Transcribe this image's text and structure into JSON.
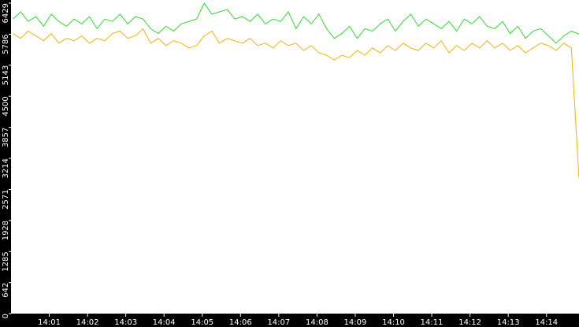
{
  "chart_data": {
    "type": "line",
    "x": [
      0.05,
      0.25,
      0.45,
      0.65,
      0.85,
      1.05,
      1.25,
      1.45,
      1.65,
      1.85,
      2.05,
      2.25,
      2.45,
      2.65,
      2.85,
      3.05,
      3.25,
      3.45,
      3.65,
      3.85,
      4.05,
      4.25,
      4.45,
      4.65,
      4.85,
      5.05,
      5.25,
      5.45,
      5.65,
      5.85,
      6.05,
      6.25,
      6.45,
      6.65,
      6.85,
      7.05,
      7.25,
      7.45,
      7.65,
      7.85,
      8.05,
      8.25,
      8.45,
      8.65,
      8.85,
      9.05,
      9.25,
      9.45,
      9.65,
      9.85,
      10.05,
      10.25,
      10.45,
      10.65,
      10.85,
      11.05,
      11.25,
      11.45,
      11.65,
      11.85,
      12.05,
      12.25,
      12.45,
      12.65,
      12.85,
      13.05,
      13.25,
      13.45,
      13.65,
      13.85,
      14.05,
      14.25,
      14.45,
      14.65,
      14.85
    ],
    "series": [
      {
        "color": "#2fdc2f",
        "values": [
          6100,
          6250,
          6050,
          6150,
          5950,
          6200,
          6050,
          5950,
          6100,
          6000,
          6150,
          5900,
          6100,
          6050,
          6200,
          6000,
          6150,
          6100,
          5900,
          5800,
          5950,
          5850,
          6000,
          6050,
          6100,
          6429,
          6200,
          6250,
          6300,
          6100,
          6150,
          6050,
          6200,
          6000,
          6100,
          6050,
          6250,
          5900,
          6150,
          6000,
          6200,
          5900,
          5700,
          5800,
          5950,
          5700,
          5900,
          5850,
          6000,
          6100,
          5850,
          6050,
          6200,
          5950,
          6100,
          6000,
          5900,
          6050,
          5850,
          6100,
          6000,
          6150,
          5950,
          5900,
          6050,
          5800,
          5950,
          5700,
          5850,
          5900,
          5750,
          5600,
          5750,
          5850,
          5786
        ]
      },
      {
        "color": "#f0b400",
        "values": [
          5800,
          5700,
          5850,
          5750,
          5650,
          5800,
          5600,
          5700,
          5650,
          5750,
          5600,
          5700,
          5650,
          5800,
          5850,
          5700,
          5750,
          5900,
          5600,
          5700,
          5550,
          5650,
          5600,
          5500,
          5550,
          5750,
          5850,
          5600,
          5700,
          5650,
          5600,
          5700,
          5550,
          5600,
          5500,
          5650,
          5550,
          5600,
          5450,
          5550,
          5400,
          5350,
          5250,
          5350,
          5300,
          5450,
          5350,
          5500,
          5400,
          5550,
          5450,
          5600,
          5500,
          5450,
          5600,
          5500,
          5650,
          5400,
          5550,
          5450,
          5600,
          5500,
          5650,
          5500,
          5600,
          5450,
          5550,
          5400,
          5500,
          5600,
          5550,
          5450,
          5600,
          5500,
          2800
        ]
      }
    ],
    "xlim": [
      0,
      14.85
    ],
    "ylim": [
      0,
      6429
    ],
    "yticks": [
      0,
      642,
      1285,
      1928,
      2571,
      3214,
      3857,
      4500,
      5143,
      5786,
      6429
    ],
    "xticks": [
      {
        "value": 1,
        "label": "14:01"
      },
      {
        "value": 2,
        "label": "14:02"
      },
      {
        "value": 3,
        "label": "14:03"
      },
      {
        "value": 4,
        "label": "14:04"
      },
      {
        "value": 5,
        "label": "14:05"
      },
      {
        "value": 6,
        "label": "14:06"
      },
      {
        "value": 7,
        "label": "14:07"
      },
      {
        "value": 8,
        "label": "14:08"
      },
      {
        "value": 9,
        "label": "14:09"
      },
      {
        "value": 10,
        "label": "14:10"
      },
      {
        "value": 11,
        "label": "14:11"
      },
      {
        "value": 12,
        "label": "14:12"
      },
      {
        "value": 13,
        "label": "14:13"
      },
      {
        "value": 14,
        "label": "14:14"
      }
    ]
  }
}
